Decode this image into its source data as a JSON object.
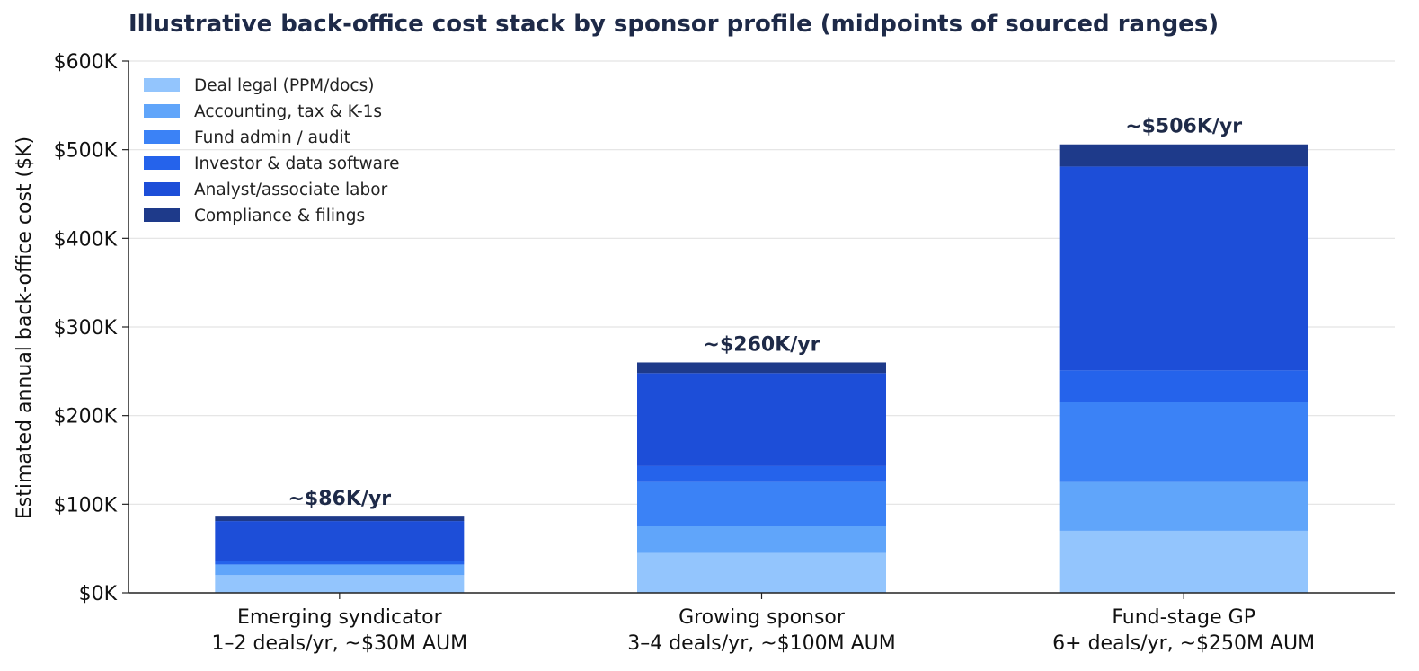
{
  "chart_data": {
    "type": "bar",
    "stacked": true,
    "title": "Illustrative back-office cost stack by sponsor profile (midpoints of sourced ranges)",
    "xlabel": "",
    "ylabel": "Estimated annual back-office cost ($K)",
    "ylim": [
      0,
      600
    ],
    "yticks": [
      0,
      100,
      200,
      300,
      400,
      500,
      600
    ],
    "ytick_labels": [
      "$0K",
      "$100K",
      "$200K",
      "$300K",
      "$400K",
      "$500K",
      "$600K"
    ],
    "grid": "horizontal",
    "legend_position": "top-left",
    "categories": [
      [
        "Emerging syndicator",
        "1–2 deals/yr, ~$30M AUM"
      ],
      [
        "Growing sponsor",
        "3–4 deals/yr, ~$100M AUM"
      ],
      [
        "Fund-stage GP",
        "6+ deals/yr, ~$250M AUM"
      ]
    ],
    "series": [
      {
        "name": "Deal legal (PPM/docs)",
        "color": "#93c5fd",
        "values": [
          20,
          45,
          70
        ]
      },
      {
        "name": "Accounting, tax & K-1s",
        "color": "#60a5fa",
        "values": [
          12,
          30,
          55
        ]
      },
      {
        "name": "Fund admin / audit",
        "color": "#3b82f6",
        "values": [
          0,
          50,
          90
        ]
      },
      {
        "name": "Investor & data software",
        "color": "#2563eb",
        "values": [
          4,
          18,
          36
        ]
      },
      {
        "name": "Analyst/associate labor",
        "color": "#1d4ed8",
        "values": [
          45,
          105,
          230
        ]
      },
      {
        "name": "Compliance & filings",
        "color": "#1e3a8a",
        "values": [
          5,
          12,
          25
        ]
      }
    ],
    "totals": [
      86,
      260,
      506
    ],
    "total_labels": [
      "~$86K/yr",
      "~$260K/yr",
      "~$506K/yr"
    ]
  }
}
